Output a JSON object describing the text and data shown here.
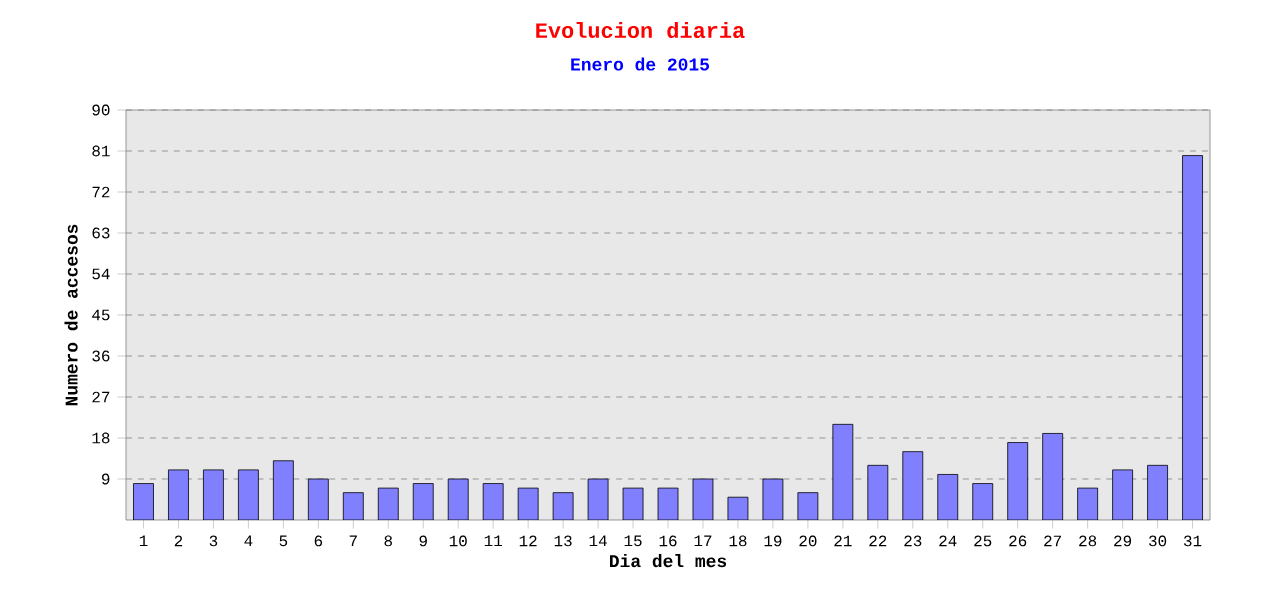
{
  "chart_data": {
    "type": "bar",
    "title": "Evolucion diaria",
    "subtitle": "Enero de 2015",
    "xlabel": "Dia del mes",
    "ylabel": "Numero de accesos",
    "categories": [
      "1",
      "2",
      "3",
      "4",
      "5",
      "6",
      "7",
      "8",
      "9",
      "10",
      "11",
      "12",
      "13",
      "14",
      "15",
      "16",
      "17",
      "18",
      "19",
      "20",
      "21",
      "22",
      "23",
      "24",
      "25",
      "26",
      "27",
      "28",
      "29",
      "30",
      "31"
    ],
    "values": [
      8,
      11,
      11,
      11,
      13,
      9,
      6,
      7,
      8,
      9,
      8,
      7,
      6,
      9,
      7,
      7,
      9,
      5,
      9,
      6,
      21,
      12,
      15,
      10,
      8,
      17,
      19,
      7,
      11,
      12,
      80
    ],
    "color": "#8080ff",
    "ylim": [
      0,
      90
    ],
    "yticks": [
      9,
      18,
      27,
      36,
      45,
      54,
      63,
      72,
      81,
      90
    ],
    "grid": "y"
  }
}
